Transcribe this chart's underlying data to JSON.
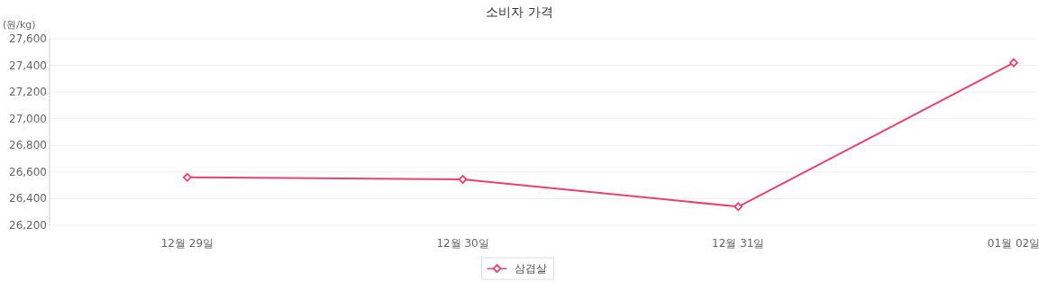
{
  "chart_data": {
    "type": "line",
    "title": "소비자 가격",
    "ylabel": "(원/kg)",
    "categories": [
      "12월 29일",
      "12월 30일",
      "12월 31일",
      "01월 02일"
    ],
    "series": [
      {
        "name": "삼겹살",
        "color": "#e8426f",
        "values": [
          26560,
          26545,
          26340,
          27420
        ]
      }
    ],
    "ylim": [
      26200,
      27600
    ],
    "yticks": [
      {
        "value": 26200,
        "label": "26,200"
      },
      {
        "value": 26400,
        "label": "26,400"
      },
      {
        "value": 26600,
        "label": "26,600"
      },
      {
        "value": 26800,
        "label": "26,800"
      },
      {
        "value": 27000,
        "label": "27,000"
      },
      {
        "value": 27200,
        "label": "27,200"
      },
      {
        "value": 27400,
        "label": "27,400"
      },
      {
        "value": 27600,
        "label": "27,600"
      }
    ],
    "grid": "y",
    "legend": "bottom",
    "marker": "diamond",
    "line_style": "solid"
  }
}
